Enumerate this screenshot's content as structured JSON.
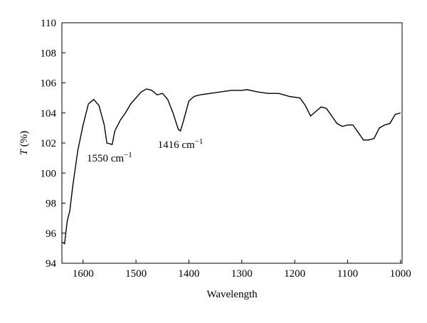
{
  "chart_data": {
    "type": "line",
    "x_label": "Wavelength",
    "y_label": {
      "symbol": "T",
      "unit": "(%)"
    },
    "annotations": [
      {
        "text": "1550 cm",
        "superscript": "−1",
        "x": 1550,
        "y": 102.0
      },
      {
        "text": "1416 cm",
        "superscript": "−1",
        "x": 1416,
        "y": 102.8
      }
    ],
    "xlim": [
      1640,
      997
    ],
    "ylim": [
      94,
      110
    ],
    "xticks": [
      1600,
      1500,
      1400,
      1300,
      1200,
      1100,
      1000
    ],
    "yticks": [
      94,
      96,
      98,
      100,
      102,
      104,
      106,
      108,
      110
    ],
    "series": [
      {
        "color": "#000000",
        "x": [
          1639,
          1635,
          1630,
          1625,
          1620,
          1610,
          1600,
          1590,
          1580,
          1570,
          1560,
          1555,
          1545,
          1540,
          1530,
          1520,
          1510,
          1500,
          1490,
          1480,
          1470,
          1460,
          1450,
          1440,
          1430,
          1420,
          1416,
          1410,
          1400,
          1390,
          1380,
          1360,
          1340,
          1320,
          1300,
          1290,
          1270,
          1250,
          1230,
          1210,
          1190,
          1180,
          1170,
          1160,
          1150,
          1140,
          1130,
          1120,
          1110,
          1100,
          1090,
          1080,
          1070,
          1060,
          1050,
          1040,
          1030,
          1020,
          1010,
          1000
        ],
        "values": [
          95.4,
          95.3,
          96.8,
          97.5,
          99.0,
          101.5,
          103.2,
          104.6,
          104.9,
          104.5,
          103.2,
          102.0,
          101.9,
          102.8,
          103.5,
          104.0,
          104.6,
          105.0,
          105.4,
          105.6,
          105.5,
          105.2,
          105.3,
          104.9,
          104.0,
          102.9,
          102.8,
          103.5,
          104.8,
          105.1,
          105.2,
          105.3,
          105.4,
          105.5,
          105.5,
          105.55,
          105.4,
          105.3,
          105.3,
          105.1,
          105.0,
          104.5,
          103.8,
          104.1,
          104.4,
          104.3,
          103.8,
          103.3,
          103.1,
          103.2,
          103.2,
          102.7,
          102.2,
          102.2,
          102.3,
          103.0,
          103.2,
          103.3,
          103.9,
          104.0
        ]
      }
    ]
  }
}
